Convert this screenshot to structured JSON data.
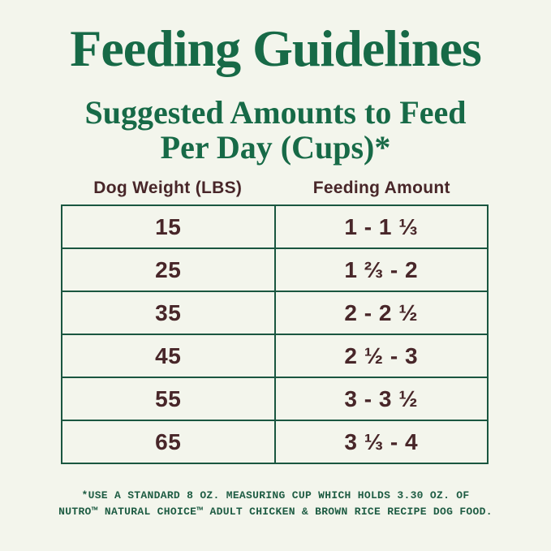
{
  "title": "Feeding Guidelines",
  "subtitle": {
    "line1": "Suggested Amounts to Feed",
    "line2": "Per Day (Cups)*"
  },
  "table": {
    "headers": [
      "Dog Weight (LBS)",
      "Feeding Amount"
    ],
    "rows": [
      {
        "weight": "15",
        "amount": "1 - 1 ⅓"
      },
      {
        "weight": "25",
        "amount": "1 ⅔ - 2"
      },
      {
        "weight": "35",
        "amount": "2 - 2 ½"
      },
      {
        "weight": "45",
        "amount": "2 ½ - 3"
      },
      {
        "weight": "55",
        "amount": "3 - 3 ½"
      },
      {
        "weight": "65",
        "amount": "3 ⅓ - 4"
      }
    ]
  },
  "footnote": {
    "line1": "*USE A STANDARD 8 OZ. MEASURING CUP WHICH HOLDS 3.30 OZ. OF",
    "line2": "NUTRO™ NATURAL CHOICE™ ADULT CHICKEN & BROWN RICE RECIPE DOG FOOD."
  },
  "colors": {
    "green": "#176A47",
    "brown": "#482629",
    "border": "#1A5640",
    "footnote": "#1E5C43",
    "bg": "#F3F5EC"
  }
}
